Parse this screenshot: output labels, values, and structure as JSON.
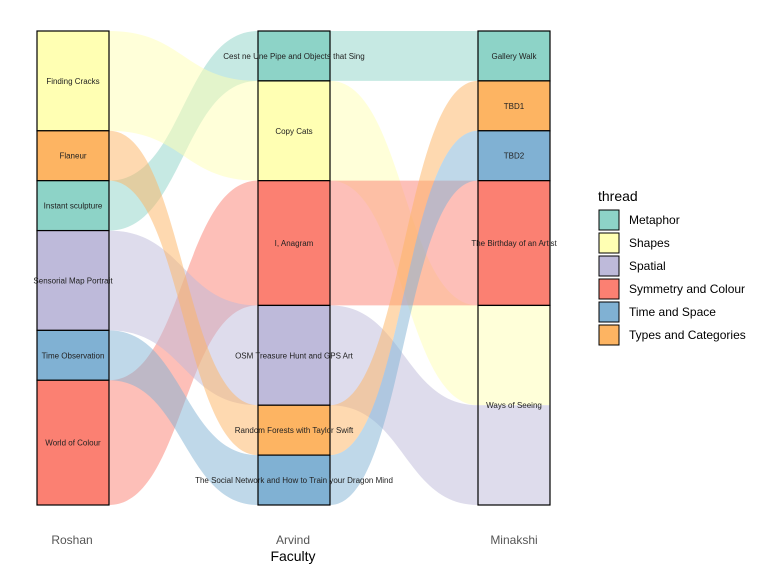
{
  "chart_data": {
    "type": "alluvial",
    "xlabel": "Faculty",
    "axes": [
      "Roshan",
      "Arvind",
      "Minakshi"
    ],
    "legend": {
      "title": "thread",
      "placement": "right",
      "entries": [
        {
          "name": "Metaphor",
          "color": "#8dd3c7"
        },
        {
          "name": "Shapes",
          "color": "#ffffb3"
        },
        {
          "name": "Spatial",
          "color": "#bebada"
        },
        {
          "name": "Symmetry and Colour",
          "color": "#fb8072"
        },
        {
          "name": "Time and Space",
          "color": "#80b1d3"
        },
        {
          "name": "Types and Categories",
          "color": "#fdb462"
        }
      ]
    },
    "strata": {
      "Roshan": [
        {
          "label": "Finding Cracks",
          "count": 2,
          "thread": "Shapes"
        },
        {
          "label": "Flaneur",
          "count": 1,
          "thread": "Types and Categories"
        },
        {
          "label": "Instant sculpture",
          "count": 1,
          "thread": "Metaphor"
        },
        {
          "label": "Sensorial Map Portrait",
          "count": 2,
          "thread": "Spatial"
        },
        {
          "label": "Time Observation",
          "count": 1,
          "thread": "Time and Space"
        },
        {
          "label": "World of Colour",
          "count": 2.5,
          "thread": "Symmetry and Colour"
        }
      ],
      "Arvind": [
        {
          "label": "Cest ne Une Pipe and Objects that Sing",
          "count": 1,
          "thread": "Metaphor"
        },
        {
          "label": "Copy Cats",
          "count": 2,
          "thread": "Shapes"
        },
        {
          "label": "I, Anagram",
          "count": 2.5,
          "thread": "Symmetry and Colour"
        },
        {
          "label": "OSM Treasure Hunt and GPS Art",
          "count": 2,
          "thread": "Spatial"
        },
        {
          "label": "Random Forests with Taylor Swift",
          "count": 1,
          "thread": "Types and Categories"
        },
        {
          "label": "The Social Network and How to Train your Dragon Mind",
          "count": 1,
          "thread": "Time and Space"
        }
      ],
      "Minakshi": [
        {
          "label": "Gallery Walk",
          "count": 1,
          "thread": "Metaphor"
        },
        {
          "label": "TBD1",
          "count": 1,
          "thread": "Types and Categories"
        },
        {
          "label": "TBD2",
          "count": 1,
          "thread": "Time and Space"
        },
        {
          "label": "The Birthday of an Artist",
          "count": 2.5,
          "thread": "Symmetry and Colour"
        },
        {
          "label": "Ways of Seeing",
          "count": 4,
          "thread": "Mixed"
        }
      ]
    },
    "flows": [
      {
        "thread": "Metaphor",
        "from": "Instant sculpture",
        "via": "Cest ne Une Pipe and Objects that Sing",
        "to": "Gallery Walk",
        "value": 1
      },
      {
        "thread": "Shapes",
        "from": "Finding Cracks",
        "via": "Copy Cats",
        "to": "Ways of Seeing",
        "value": 2
      },
      {
        "thread": "Symmetry and Colour",
        "from": "World of Colour",
        "via": "I, Anagram",
        "to": "The Birthday of an Artist",
        "value": 2.5
      },
      {
        "thread": "Spatial",
        "from": "Sensorial Map Portrait",
        "via": "OSM Treasure Hunt and GPS Art",
        "to": "Ways of Seeing",
        "value": 2
      },
      {
        "thread": "Types and Categories",
        "from": "Flaneur",
        "via": "Random Forests with Taylor Swift",
        "to": "TBD1",
        "value": 1
      },
      {
        "thread": "Time and Space",
        "from": "Time Observation",
        "via": "The Social Network and How to Train your Dragon Mind",
        "to": "TBD2",
        "value": 1
      }
    ]
  }
}
